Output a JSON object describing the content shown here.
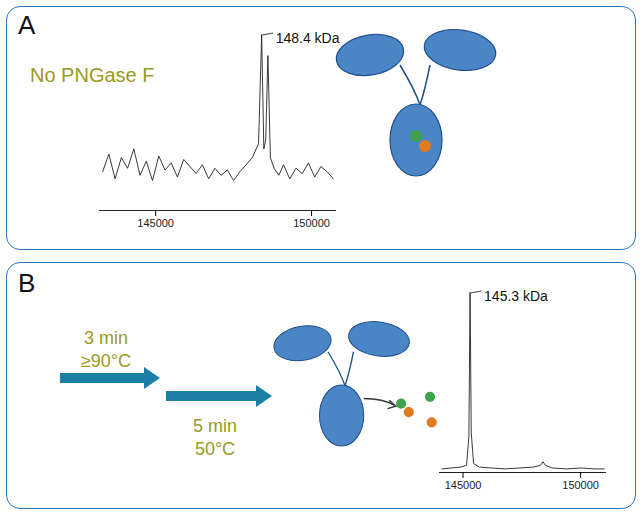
{
  "chart_data": [
    {
      "type": "line",
      "panel": "A",
      "annotation": "No PNGase F",
      "color": "#222222",
      "peak_label": {
        "text": "148.4 kDa",
        "x": 148400,
        "y": 100
      },
      "x": [
        143300,
        143500,
        143700,
        143900,
        144100,
        144300,
        144500,
        144700,
        144900,
        145100,
        145300,
        145500,
        145700,
        145900,
        146100,
        146300,
        146500,
        146700,
        146900,
        147100,
        147300,
        147500,
        147700,
        147900,
        148100,
        148300,
        148400,
        148470,
        148530,
        148600,
        148680,
        148800,
        148950,
        149100,
        149300,
        149500,
        149700,
        149900,
        150100,
        150300,
        150500,
        150700
      ],
      "values": [
        22,
        32,
        18,
        30,
        24,
        35,
        20,
        28,
        17,
        31,
        23,
        27,
        19,
        29,
        25,
        21,
        26,
        18,
        24,
        20,
        23,
        17,
        22,
        26,
        30,
        38,
        100,
        35,
        40,
        88,
        30,
        24,
        20,
        26,
        18,
        24,
        21,
        27,
        19,
        25,
        22,
        18
      ],
      "xlim": [
        143200,
        150800
      ],
      "xticks": [
        145000,
        150000
      ],
      "ylim": [
        0,
        100
      ],
      "grid": false,
      "tick_labels": "x"
    },
    {
      "type": "line",
      "panel": "B",
      "color": "#222222",
      "steps": [
        {
          "time": "3 min",
          "temperature": "≥90°C"
        },
        {
          "time": "5 min",
          "temperature": "50°C"
        }
      ],
      "peak_label": {
        "text": "145.3 kDa",
        "x": 145300,
        "y": 100
      },
      "x": [
        144100,
        144500,
        144900,
        145150,
        145250,
        145300,
        145350,
        145450,
        145700,
        146200,
        146800,
        147400,
        148000,
        148300,
        148400,
        148500,
        148800,
        149400,
        150000,
        150600,
        151000
      ],
      "values": [
        2,
        2.5,
        3,
        4,
        20,
        100,
        22,
        5,
        3,
        2.5,
        2,
        2.5,
        3,
        4,
        6,
        4,
        2.5,
        2,
        2.5,
        2,
        2
      ],
      "xlim": [
        144000,
        151100
      ],
      "xticks": [
        145000,
        150000
      ],
      "ylim": [
        0,
        100
      ],
      "grid": false,
      "tick_labels": "x"
    }
  ]
}
